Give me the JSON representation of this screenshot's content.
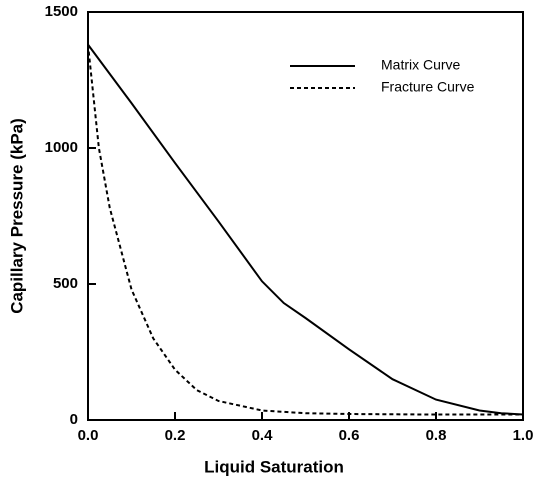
{
  "chart_data": {
    "type": "line",
    "xlabel": "Liquid Saturation",
    "ylabel": "Capillary Pressure (kPa)",
    "xlim": [
      0,
      1
    ],
    "ylim": [
      0,
      1500
    ],
    "xticks": [
      {
        "value": 0,
        "label": "0.0"
      },
      0.2,
      0.4,
      0.6,
      0.8,
      {
        "value": 1,
        "label": "1.0"
      }
    ],
    "yticks": [
      0,
      500,
      1000,
      1500
    ],
    "legend": "upper right",
    "series": [
      {
        "name": "Matrix Curve",
        "color": "#000000",
        "line_style": "solid",
        "x": [
          0,
          0.1,
          0.2,
          0.3,
          0.4,
          0.45,
          0.5,
          0.6,
          0.7,
          0.8,
          0.9,
          0.95,
          1.0
        ],
        "values": [
          1380,
          1165,
          945,
          730,
          510,
          430,
          375,
          260,
          150,
          75,
          35,
          25,
          20
        ]
      },
      {
        "name": "Fracture Curve",
        "color": "#000000",
        "line_style": "dashed",
        "x": [
          0,
          0.025,
          0.05,
          0.1,
          0.15,
          0.2,
          0.25,
          0.3,
          0.4,
          0.5,
          0.6,
          0.8,
          1.0
        ],
        "values": [
          1380,
          1000,
          780,
          480,
          300,
          185,
          110,
          70,
          35,
          25,
          22,
          20,
          20
        ]
      }
    ]
  }
}
